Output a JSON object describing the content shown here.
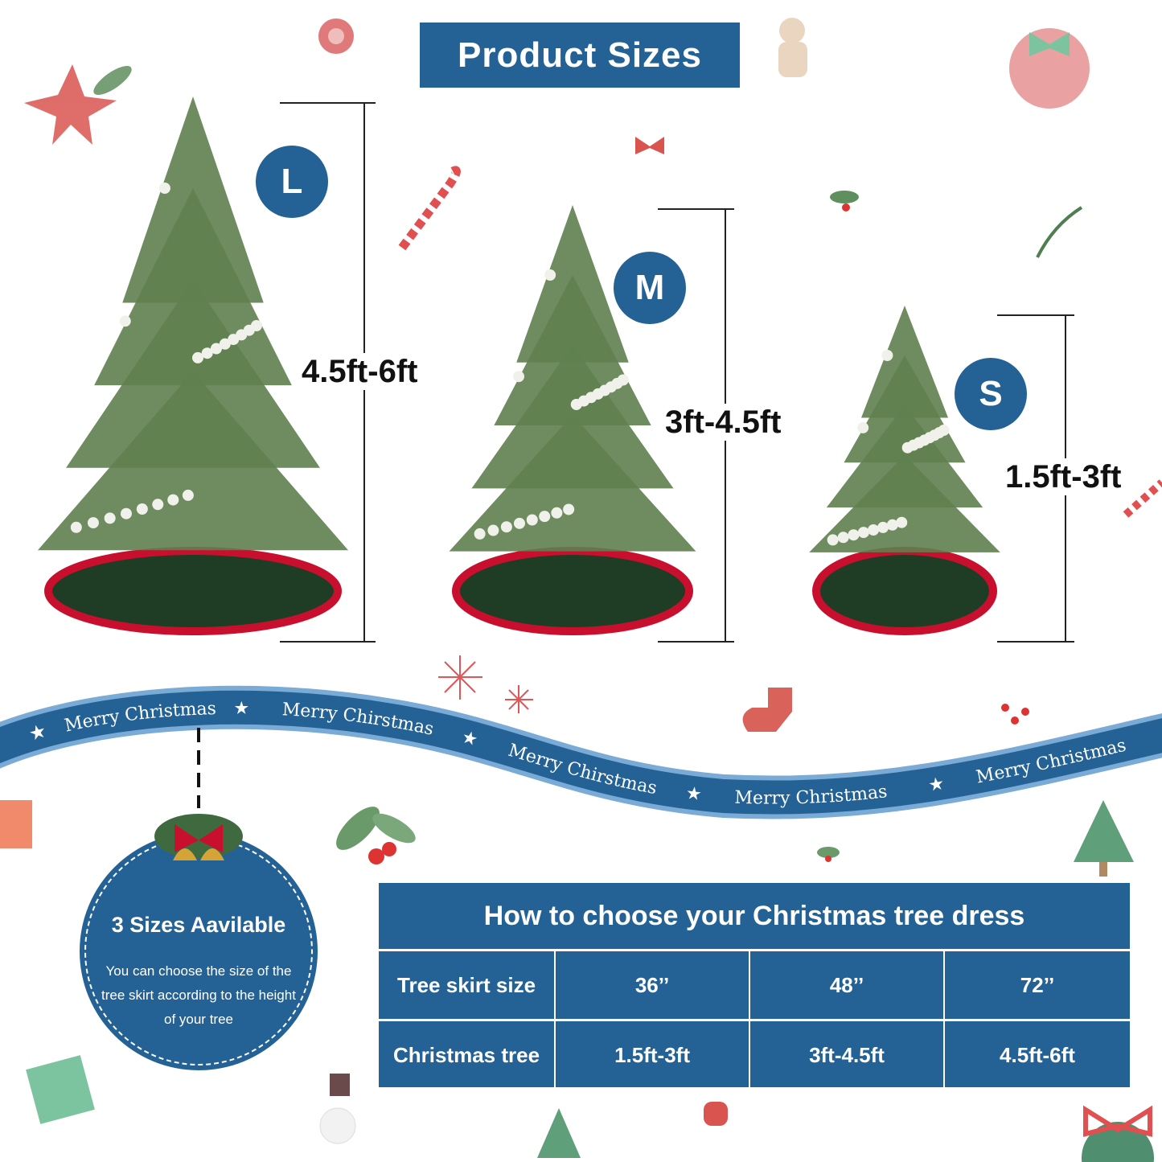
{
  "title": "Product Sizes",
  "sizes": [
    {
      "letter": "L",
      "range": "4.5ft-6ft"
    },
    {
      "letter": "M",
      "range": "3ft-4.5ft"
    },
    {
      "letter": "S",
      "range": "1.5ft-3ft"
    }
  ],
  "ribbon": {
    "texts": [
      "Merry Christmas",
      "Merry Chirstmas",
      "Merry Chirstmas",
      "Merry Christmas",
      "Merry Christmas"
    ]
  },
  "badge": {
    "title": "3 Sizes Aavilable",
    "body": "You can choose the size of the tree skirt according to the height of your tree"
  },
  "table": {
    "title": "How to choose your Christmas tree dress",
    "rows": [
      {
        "label": "Tree skirt size",
        "values": [
          "36’’",
          "48’’",
          "72’’"
        ]
      },
      {
        "label": "Christmas tree",
        "values": [
          "1.5ft-3ft",
          "3ft-4.5ft",
          "4.5ft-6ft"
        ]
      }
    ]
  },
  "colors": {
    "brand_blue": "#246295",
    "ribbon_edge": "#7aaad6",
    "skirt_red": "#c8102e",
    "skirt_green": "#1f3d24",
    "tree_green": "#5f7f4f"
  }
}
